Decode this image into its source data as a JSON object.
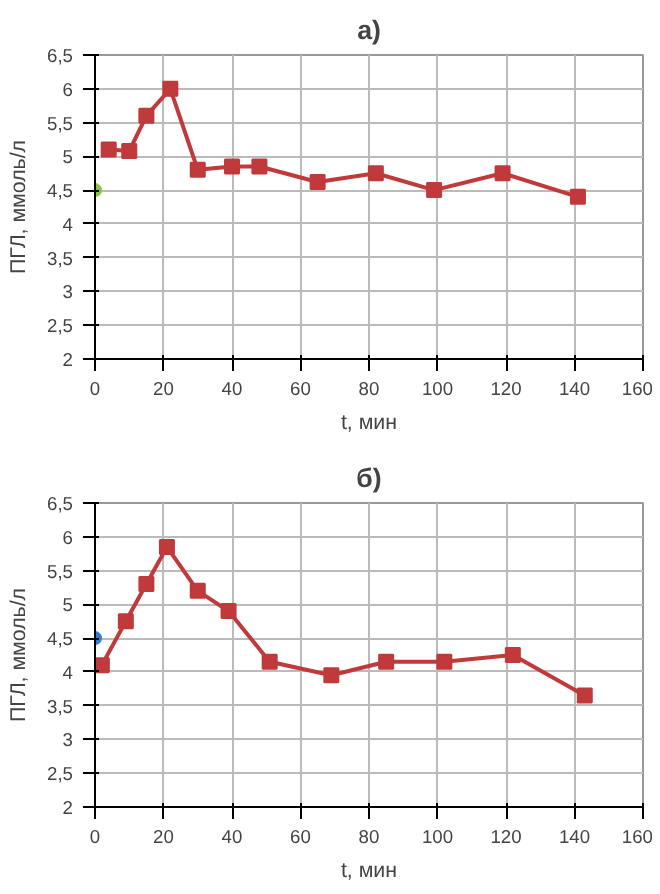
{
  "chart_data": [
    {
      "type": "line",
      "title": "а)",
      "xlabel": "t, мин",
      "ylabel": "ПГЛ, ммоль/л",
      "xlim": [
        0,
        160
      ],
      "ylim": [
        2,
        6.5
      ],
      "xticks": [
        0,
        20,
        40,
        60,
        80,
        100,
        120,
        140,
        160
      ],
      "yticks": [
        2,
        {
          "value": 2.5,
          "label": "2,5"
        },
        3,
        {
          "value": 3.5,
          "label": "3,5"
        },
        4,
        {
          "value": 4.5,
          "label": "4,5"
        },
        5,
        {
          "value": 5.5,
          "label": "5,5"
        },
        6,
        {
          "value": 6.5,
          "label": "6,5"
        }
      ],
      "grid": true,
      "line_style": "solid",
      "series": [
        {
          "color": "#c0393b",
          "marker": "square",
          "x": [
            4,
            10,
            15,
            22,
            30,
            40,
            48,
            65,
            82,
            99,
            119,
            141
          ],
          "values": [
            5.1,
            5.08,
            5.6,
            6.0,
            4.8,
            4.85,
            4.85,
            4.62,
            4.75,
            4.5,
            4.75,
            4.4
          ]
        },
        {
          "type": "scatter",
          "marker": "circle",
          "color": "#8cc63f",
          "x": [
            0
          ],
          "values": [
            4.5
          ]
        }
      ]
    },
    {
      "type": "line",
      "title": "б)",
      "xlabel": "t, мин",
      "ylabel": "ПГЛ, ммоль/л",
      "xlim": [
        0,
        160
      ],
      "ylim": [
        2,
        6.5
      ],
      "xticks": [
        0,
        20,
        40,
        60,
        80,
        100,
        120,
        140,
        160
      ],
      "yticks": [
        2,
        {
          "value": 2.5,
          "label": "2,5"
        },
        3,
        {
          "value": 3.5,
          "label": "3,5"
        },
        4,
        {
          "value": 4.5,
          "label": "4,5"
        },
        5,
        {
          "value": 5.5,
          "label": "5,5"
        },
        6,
        {
          "value": 6.5,
          "label": "6,5"
        }
      ],
      "grid": true,
      "line_style": "solid",
      "series": [
        {
          "color": "#c0393b",
          "marker": "square",
          "x": [
            2,
            9,
            15,
            21,
            30,
            39,
            51,
            69,
            85,
            102,
            122,
            143
          ],
          "values": [
            4.1,
            4.75,
            5.3,
            5.85,
            5.2,
            4.9,
            4.15,
            3.95,
            4.15,
            4.15,
            4.25,
            3.65
          ]
        },
        {
          "type": "scatter",
          "marker": "circle",
          "color": "#2f7fd0",
          "x": [
            0
          ],
          "values": [
            4.5
          ]
        }
      ]
    }
  ]
}
